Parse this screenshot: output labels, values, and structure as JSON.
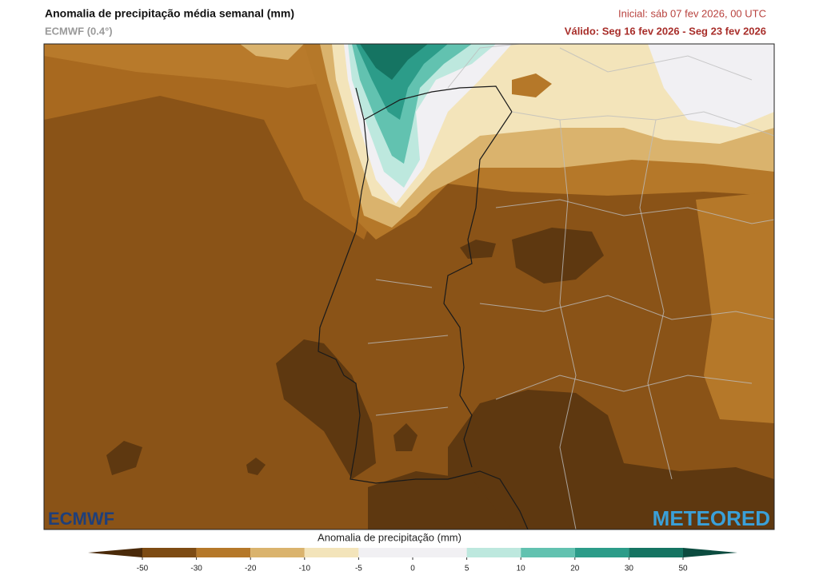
{
  "header": {
    "title": "Anomalia de precipitação média semanal (mm)",
    "subtitle": "ECMWF (0.4°)",
    "initial": "Inicial:  sáb 07 fev 2026, 00 UTC",
    "valid": "Válido: Seg 16 fev 2026 - Seg 23 fev 2026"
  },
  "logos": {
    "left": "ECMWF",
    "right": "METEORED"
  },
  "colorbar": {
    "label": "Anomalia de precipitação (mm)",
    "ticks": [
      -50,
      -30,
      -20,
      -10,
      -5,
      0,
      5,
      10,
      20,
      30,
      50
    ],
    "colors": [
      "#4a2a0a",
      "#7d4b13",
      "#b57829",
      "#dab36d",
      "#f3e4ba",
      "#f1f0f3",
      "#f1f0f3",
      "#bde8de",
      "#62c2b0",
      "#2c9c89",
      "#157462",
      "#0b4b3f"
    ]
  }
}
